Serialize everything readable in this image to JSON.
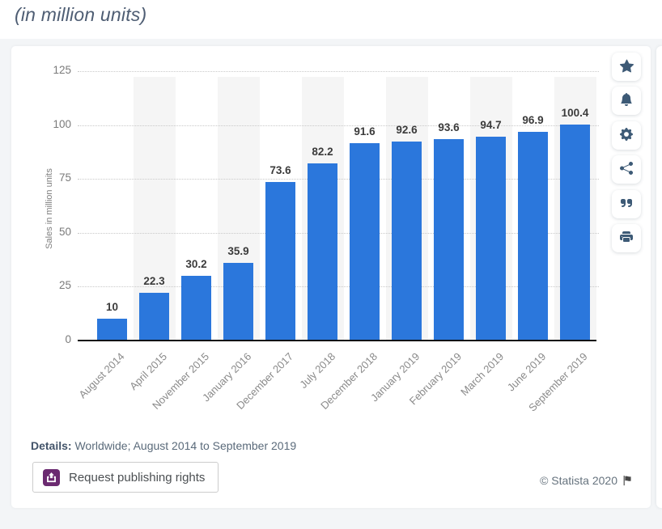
{
  "page": {
    "title": "(in million units)",
    "copyright": "© Statista 2020"
  },
  "details": {
    "label": "Details:",
    "text": "Worldwide; August 2014 to September 2019"
  },
  "buttons": {
    "publishing_label": "Request publishing rights"
  },
  "toolbar": {
    "icons": [
      "star-icon",
      "bell-icon",
      "gear-icon",
      "share-icon",
      "quote-icon",
      "print-icon"
    ],
    "icon_color": "#3d5a76"
  },
  "colors": {
    "bar": "#2b77dc",
    "stripe": "#f5f5f5",
    "publish_icon_bg": "#6b2a70",
    "title_text": "#4e5d73",
    "page_bg": "#f3f5f7"
  },
  "chart_data": {
    "type": "bar",
    "title": "(in million units)",
    "categories": [
      "August 2014",
      "April 2015",
      "November 2015",
      "January 2016",
      "December 2017",
      "July 2018",
      "December 2018",
      "January 2019",
      "February 2019",
      "March 2019",
      "June 2019",
      "September 2019"
    ],
    "values": [
      10,
      22.3,
      30.2,
      35.9,
      73.6,
      82.2,
      91.6,
      92.6,
      93.6,
      94.7,
      96.9,
      100.4
    ],
    "xlabel": "",
    "ylabel": "Sales in million units",
    "ylim": [
      0,
      125
    ],
    "yticks": [
      0,
      25,
      50,
      75,
      100,
      125
    ],
    "grid": "horizontal-dotted",
    "legend": "none",
    "value_labels": true,
    "column_stripes": "alternating-even-columns"
  }
}
